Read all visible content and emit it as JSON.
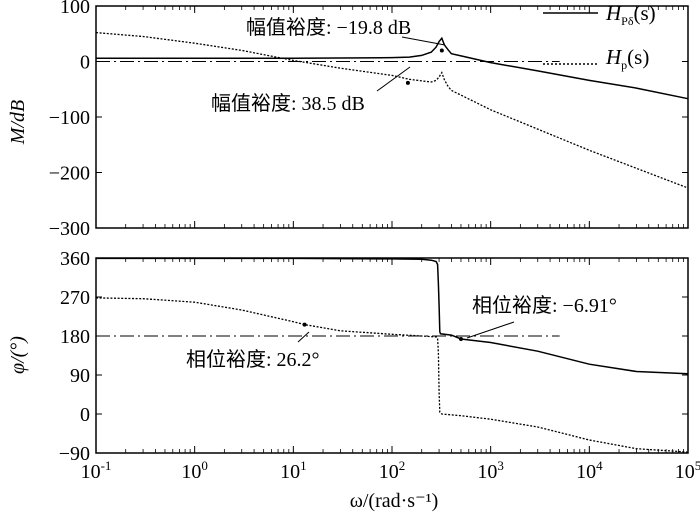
{
  "chart_data": [
    {
      "type": "line",
      "xscale": "log",
      "xlim": [
        0.1,
        100000
      ],
      "ylim": [
        -300,
        100
      ],
      "ylabel": "M/dB",
      "yticks": [
        "100",
        "0",
        "−100",
        "−200",
        "−300"
      ],
      "reference_line": 0,
      "series": [
        {
          "name": "H_Pδ(s)",
          "style": "solid",
          "points": [
            [
              0.1,
              6
            ],
            [
              1,
              6
            ],
            [
              10,
              6
            ],
            [
              50,
              6.5
            ],
            [
              100,
              7
            ],
            [
              150,
              8
            ],
            [
              200,
              11
            ],
            [
              250,
              17
            ],
            [
              280,
              26
            ],
            [
              300,
              36
            ],
            [
              320,
              42
            ],
            [
              340,
              30
            ],
            [
              370,
              21
            ],
            [
              400,
              14
            ],
            [
              500,
              10
            ],
            [
              1000,
              -2
            ],
            [
              3000,
              -17
            ],
            [
              10000,
              -34
            ],
            [
              30000,
              -48
            ],
            [
              100000,
              -67
            ]
          ]
        },
        {
          "name": "H_p(s)",
          "style": "dotted",
          "points": [
            [
              0.1,
              52
            ],
            [
              0.3,
              45
            ],
            [
              1,
              33
            ],
            [
              3,
              20
            ],
            [
              10,
              2
            ],
            [
              30,
              -12
            ],
            [
              100,
              -25
            ],
            [
              150,
              -32
            ],
            [
              200,
              -35
            ],
            [
              250,
              -37
            ],
            [
              280,
              -34
            ],
            [
              300,
              -28
            ],
            [
              320,
              -20
            ],
            [
              340,
              -33
            ],
            [
              370,
              -45
            ],
            [
              400,
              -52
            ],
            [
              1000,
              -87
            ],
            [
              10000,
              -160
            ],
            [
              100000,
              -228
            ]
          ]
        }
      ],
      "annotations": [
        {
          "text": "幅值裕度: −19.8 dB",
          "x": 320,
          "y": 19.8
        },
        {
          "text": "幅值裕度: 38.5 dB",
          "x": 145,
          "y": -38.5
        }
      ],
      "legend": [
        {
          "name": "H",
          "sub": "Pδ",
          "suffix": "(s)",
          "style": "solid"
        },
        {
          "name": "H",
          "sub": "p",
          "suffix": "(s)",
          "style": "dotted"
        }
      ]
    },
    {
      "type": "line",
      "xscale": "log",
      "xlim": [
        0.1,
        100000
      ],
      "ylim": [
        -90,
        360
      ],
      "xlabel": "ω/(rad·s⁻¹)",
      "ylabel": "φ/(°)",
      "yticks": [
        "360",
        "270",
        "180",
        "90",
        "0",
        "−90"
      ],
      "xticks": [
        {
          "base": "10",
          "exp": "-1"
        },
        {
          "base": "10",
          "exp": "0"
        },
        {
          "base": "10",
          "exp": "1"
        },
        {
          "base": "10",
          "exp": "2"
        },
        {
          "base": "10",
          "exp": "3"
        },
        {
          "base": "10",
          "exp": "4"
        },
        {
          "base": "10",
          "exp": "5"
        }
      ],
      "reference_line": 180,
      "series": [
        {
          "name": "H_Pδ(s)",
          "style": "solid",
          "points": [
            [
              0.1,
              359
            ],
            [
              10,
              359
            ],
            [
              100,
              358
            ],
            [
              200,
              357
            ],
            [
              250,
              355
            ],
            [
              280,
              352
            ],
            [
              290,
              345
            ],
            [
              295,
              300
            ],
            [
              300,
              250
            ],
            [
              305,
              190
            ],
            [
              310,
              185
            ],
            [
              400,
              182
            ],
            [
              500,
              173.1
            ],
            [
              1000,
              165
            ],
            [
              3000,
              145
            ],
            [
              10000,
              115
            ],
            [
              30000,
              98
            ],
            [
              100000,
              93
            ]
          ]
        },
        {
          "name": "H_p(s)",
          "style": "dotted",
          "points": [
            [
              0.1,
              268
            ],
            [
              0.3,
              266
            ],
            [
              1,
              258
            ],
            [
              3,
              240
            ],
            [
              10,
              213
            ],
            [
              13,
              206.2
            ],
            [
              30,
              192
            ],
            [
              100,
              184
            ],
            [
              200,
              180
            ],
            [
              280,
              178
            ],
            [
              290,
              175
            ],
            [
              295,
              140
            ],
            [
              300,
              50
            ],
            [
              305,
              4
            ],
            [
              320,
              0
            ],
            [
              500,
              -4
            ],
            [
              1000,
              -12
            ],
            [
              3000,
              -30
            ],
            [
              10000,
              -60
            ],
            [
              30000,
              -80
            ],
            [
              100000,
              -88
            ]
          ]
        }
      ],
      "annotations": [
        {
          "text": "相位裕度: −6.91°",
          "x": 500,
          "y": 173.1
        },
        {
          "text": "相位裕度: 26.2°",
          "x": 13,
          "y": 206.2
        }
      ]
    }
  ]
}
